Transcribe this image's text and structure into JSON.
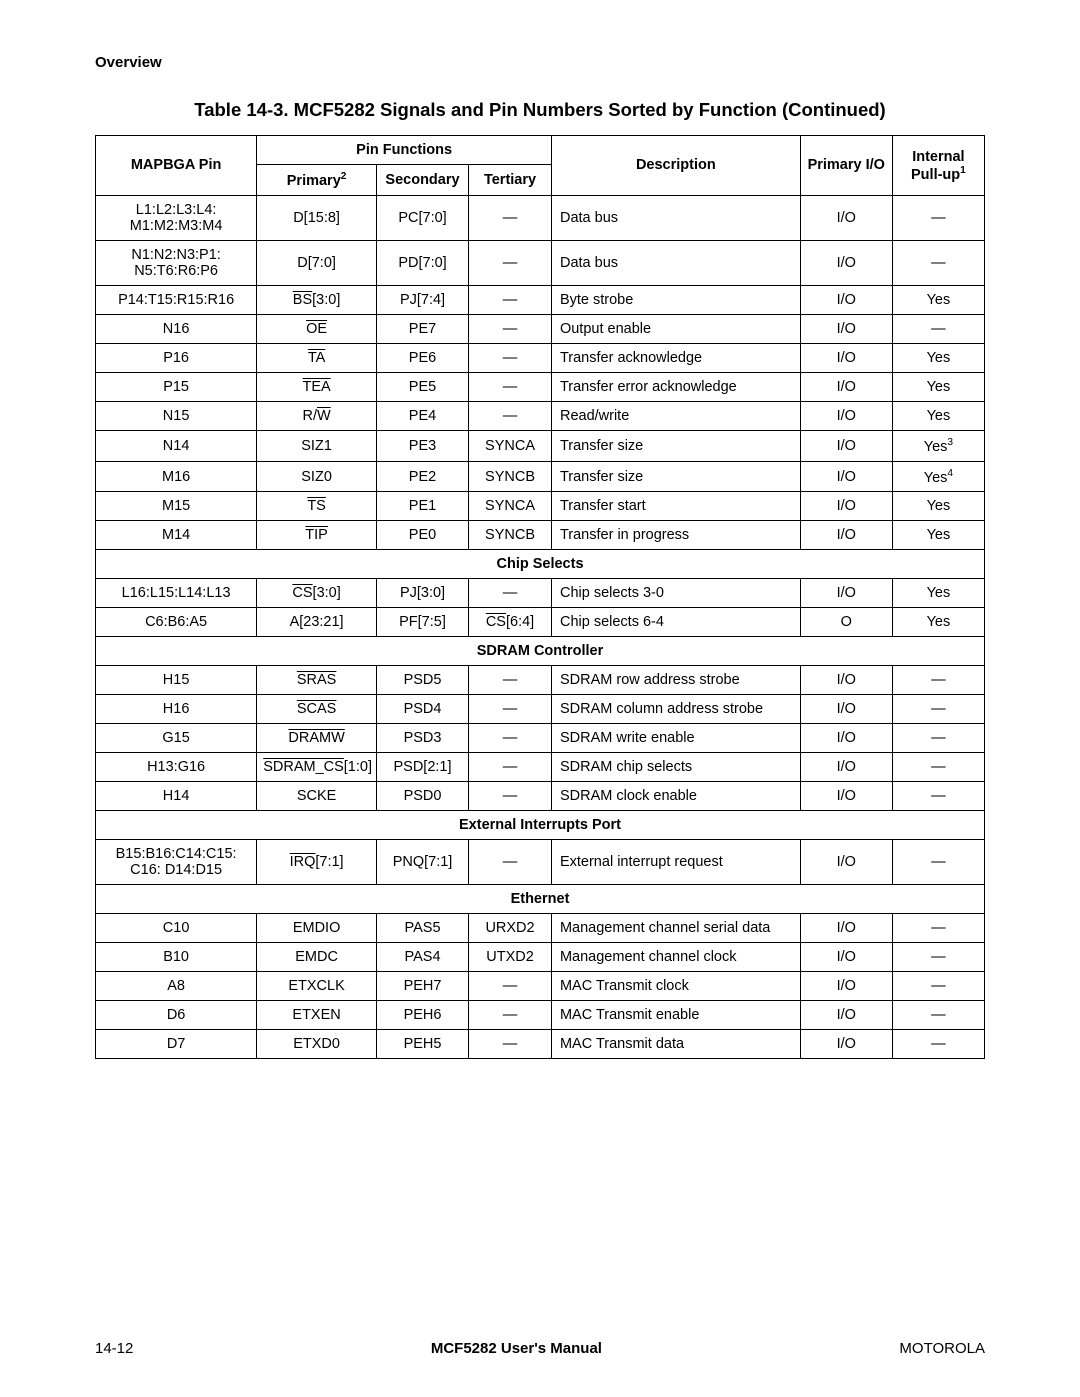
{
  "header": {
    "overview": "Overview"
  },
  "title": "Table 14-3. MCF5282 Signals and Pin Numbers Sorted by Function (Continued)",
  "columns": {
    "pin": "MAPBGA Pin",
    "funcs": "Pin Functions",
    "primary": "Primary",
    "primary_fn": "2",
    "secondary": "Secondary",
    "tertiary": "Tertiary",
    "desc": "Description",
    "io": "Primary I/O",
    "pullup": "Internal Pull-up",
    "pullup_fn": "1"
  },
  "sections": [
    {
      "rows": [
        {
          "pin": "L1:L2:L3:L4: M1:M2:M3:M4",
          "primary": "D[15:8]",
          "secondary": "PC[7:0]",
          "tertiary": "—",
          "desc": "Data bus",
          "io": "I/O",
          "pullup": "—"
        },
        {
          "pin": "N1:N2:N3:P1: N5:T6:R6:P6",
          "primary": "D[7:0]",
          "secondary": "PD[7:0]",
          "tertiary": "—",
          "desc": "Data bus",
          "io": "I/O",
          "pullup": "—"
        },
        {
          "pin": "P14:T15:R15:R16",
          "primary_over": "BS",
          "primary_tail": "[3:0]",
          "secondary": "PJ[7:4]",
          "tertiary": "—",
          "desc": "Byte strobe",
          "io": "I/O",
          "pullup": "Yes"
        },
        {
          "pin": "N16",
          "primary_over": "OE",
          "secondary": "PE7",
          "tertiary": "—",
          "desc": "Output enable",
          "io": "I/O",
          "pullup": "—"
        },
        {
          "pin": "P16",
          "primary_over": "TA",
          "secondary": "PE6",
          "tertiary": "—",
          "desc": "Transfer acknowledge",
          "io": "I/O",
          "pullup": "Yes"
        },
        {
          "pin": "P15",
          "primary_over": "TEA",
          "secondary": "PE5",
          "tertiary": "—",
          "desc": "Transfer error acknowledge",
          "io": "I/O",
          "pullup": "Yes"
        },
        {
          "pin": "N15",
          "primary_pre": "R/",
          "primary_over": "W",
          "secondary": "PE4",
          "tertiary": "—",
          "desc": "Read/write",
          "io": "I/O",
          "pullup": "Yes"
        },
        {
          "pin": "N14",
          "primary": "SIZ1",
          "secondary": "PE3",
          "tertiary": "SYNCA",
          "desc": "Transfer size",
          "io": "I/O",
          "pullup": "Yes",
          "pullup_fn": "3"
        },
        {
          "pin": "M16",
          "primary": "SIZ0",
          "secondary": "PE2",
          "tertiary": "SYNCB",
          "desc": "Transfer size",
          "io": "I/O",
          "pullup": "Yes",
          "pullup_fn": "4"
        },
        {
          "pin": "M15",
          "primary_over": "TS",
          "secondary": "PE1",
          "tertiary": "SYNCA",
          "desc": "Transfer start",
          "io": "I/O",
          "pullup": "Yes"
        },
        {
          "pin": "M14",
          "primary_over": "TIP",
          "secondary": "PE0",
          "tertiary": "SYNCB",
          "desc": "Transfer in progress",
          "io": "I/O",
          "pullup": "Yes"
        }
      ]
    },
    {
      "title": "Chip Selects",
      "rows": [
        {
          "pin": "L16:L15:L14:L13",
          "primary_over": "CS",
          "primary_tail": "[3:0]",
          "secondary": "PJ[3:0]",
          "tertiary": "—",
          "desc": "Chip selects 3-0",
          "io": "I/O",
          "pullup": "Yes"
        },
        {
          "pin": "C6:B6:A5",
          "primary": "A[23:21]",
          "secondary": "PF[7:5]",
          "tertiary_over": "CS",
          "tertiary_tail": "[6:4]",
          "desc": "Chip selects 6-4",
          "io": "O",
          "pullup": "Yes"
        }
      ]
    },
    {
      "title": "SDRAM Controller",
      "rows": [
        {
          "pin": "H15",
          "primary_over": "SRAS",
          "secondary": "PSD5",
          "tertiary": "—",
          "desc": "SDRAM row address strobe",
          "io": "I/O",
          "pullup": "—"
        },
        {
          "pin": "H16",
          "primary_over": "SCAS",
          "secondary": "PSD4",
          "tertiary": "—",
          "desc": "SDRAM column address strobe",
          "io": "I/O",
          "pullup": "—"
        },
        {
          "pin": "G15",
          "primary_over": "DRAMW",
          "secondary": "PSD3",
          "tertiary": "—",
          "desc": "SDRAM write enable",
          "io": "I/O",
          "pullup": "—"
        },
        {
          "pin": "H13:G16",
          "primary_over": "SDRAM_CS",
          "primary_tail": "[1:0]",
          "secondary": "PSD[2:1]",
          "tertiary": "—",
          "desc": "SDRAM chip selects",
          "io": "I/O",
          "pullup": "—"
        },
        {
          "pin": "H14",
          "primary": "SCKE",
          "secondary": "PSD0",
          "tertiary": "—",
          "desc": "SDRAM clock enable",
          "io": "I/O",
          "pullup": "—"
        }
      ]
    },
    {
      "title": "External Interrupts Port",
      "rows": [
        {
          "pin": "B15:B16:C14:C15: C16: D14:D15",
          "primary_over": "IRQ",
          "primary_tail": "[7:1]",
          "secondary": "PNQ[7:1]",
          "tertiary": "—",
          "desc": "External interrupt request",
          "io": "I/O",
          "pullup": "—"
        }
      ]
    },
    {
      "title": "Ethernet",
      "rows": [
        {
          "pin": "C10",
          "primary": "EMDIO",
          "secondary": "PAS5",
          "tertiary": "URXD2",
          "desc": "Management channel serial data",
          "io": "I/O",
          "pullup": "—"
        },
        {
          "pin": "B10",
          "primary": "EMDC",
          "secondary": "PAS4",
          "tertiary": "UTXD2",
          "desc": "Management channel clock",
          "io": "I/O",
          "pullup": "—"
        },
        {
          "pin": "A8",
          "primary": "ETXCLK",
          "secondary": "PEH7",
          "tertiary": "—",
          "desc": "MAC Transmit clock",
          "io": "I/O",
          "pullup": "—"
        },
        {
          "pin": "D6",
          "primary": "ETXEN",
          "secondary": "PEH6",
          "tertiary": "—",
          "desc": "MAC Transmit enable",
          "io": "I/O",
          "pullup": "—"
        },
        {
          "pin": "D7",
          "primary": "ETXD0",
          "secondary": "PEH5",
          "tertiary": "—",
          "desc": "MAC Transmit data",
          "io": "I/O",
          "pullup": "—"
        }
      ]
    }
  ],
  "footer": {
    "left": "14-12",
    "center": "MCF5282 User's Manual",
    "right": "MOTOROLA"
  }
}
